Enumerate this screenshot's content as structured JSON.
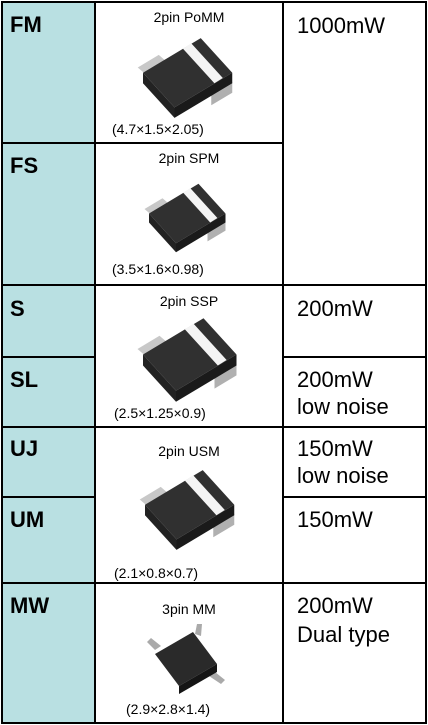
{
  "codes": [
    "FM",
    "FS",
    "S",
    "SL",
    "UJ",
    "UM",
    "MW"
  ],
  "packages": [
    {
      "name": "2pin PoMM",
      "dims": "(4.7×1.5×2.05)"
    },
    {
      "name": "2pin SPM",
      "dims": "(3.5×1.6×0.98)"
    },
    {
      "name": "2pin SSP",
      "dims": "(2.5×1.25×0.9)"
    },
    {
      "name": "2pin USM",
      "dims": "(2.1×0.8×0.7)"
    },
    {
      "name": "3pin MM",
      "dims": "(2.9×2.8×1.4)"
    }
  ],
  "power": [
    [
      "1000mW"
    ],
    [
      "200mW"
    ],
    [
      "200mW",
      "low noise"
    ],
    [
      "150mW",
      "low noise"
    ],
    [
      "150mW"
    ],
    [
      "200mW",
      "Dual type"
    ]
  ]
}
